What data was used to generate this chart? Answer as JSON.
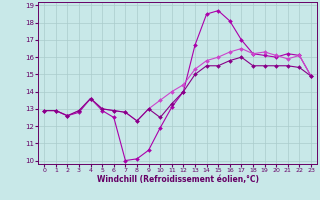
{
  "xlabel": "Windchill (Refroidissement éolien,°C)",
  "bg_color": "#c8e8e8",
  "grid_color": "#aacccc",
  "line_color1": "#aa00aa",
  "line_color2": "#cc44cc",
  "line_color3": "#880088",
  "xlim": [
    -0.5,
    23.5
  ],
  "ylim": [
    9.8,
    19.2
  ],
  "yticks": [
    10,
    11,
    12,
    13,
    14,
    15,
    16,
    17,
    18,
    19
  ],
  "xticks": [
    0,
    1,
    2,
    3,
    4,
    5,
    6,
    7,
    8,
    9,
    10,
    11,
    12,
    13,
    14,
    15,
    16,
    17,
    18,
    19,
    20,
    21,
    22,
    23
  ],
  "line1_x": [
    0,
    1,
    2,
    3,
    4,
    5,
    6,
    7,
    8,
    9,
    10,
    11,
    12,
    13,
    14,
    15,
    16,
    17,
    18,
    19,
    20,
    21,
    22,
    23
  ],
  "line1_y": [
    12.9,
    12.9,
    12.6,
    12.8,
    13.6,
    12.9,
    12.5,
    10.0,
    10.1,
    10.6,
    11.9,
    13.1,
    14.0,
    16.7,
    18.5,
    18.7,
    18.1,
    17.0,
    16.2,
    16.1,
    16.0,
    16.2,
    16.1,
    14.9
  ],
  "line2_x": [
    0,
    1,
    2,
    3,
    4,
    5,
    6,
    7,
    8,
    9,
    10,
    11,
    12,
    13,
    14,
    15,
    16,
    17,
    18,
    19,
    20,
    21,
    22,
    23
  ],
  "line2_y": [
    12.9,
    12.9,
    12.6,
    12.9,
    13.6,
    13.0,
    12.9,
    12.8,
    12.3,
    13.0,
    13.5,
    14.0,
    14.4,
    15.3,
    15.8,
    16.0,
    16.3,
    16.5,
    16.2,
    16.3,
    16.1,
    15.9,
    16.1,
    14.9
  ],
  "line3_x": [
    0,
    1,
    2,
    3,
    4,
    5,
    6,
    7,
    8,
    9,
    10,
    11,
    12,
    13,
    14,
    15,
    16,
    17,
    18,
    19,
    20,
    21,
    22,
    23
  ],
  "line3_y": [
    12.9,
    12.9,
    12.6,
    12.9,
    13.6,
    13.0,
    12.9,
    12.8,
    12.3,
    13.0,
    12.5,
    13.3,
    14.0,
    15.0,
    15.5,
    15.5,
    15.8,
    16.0,
    15.5,
    15.5,
    15.5,
    15.5,
    15.4,
    14.9
  ]
}
